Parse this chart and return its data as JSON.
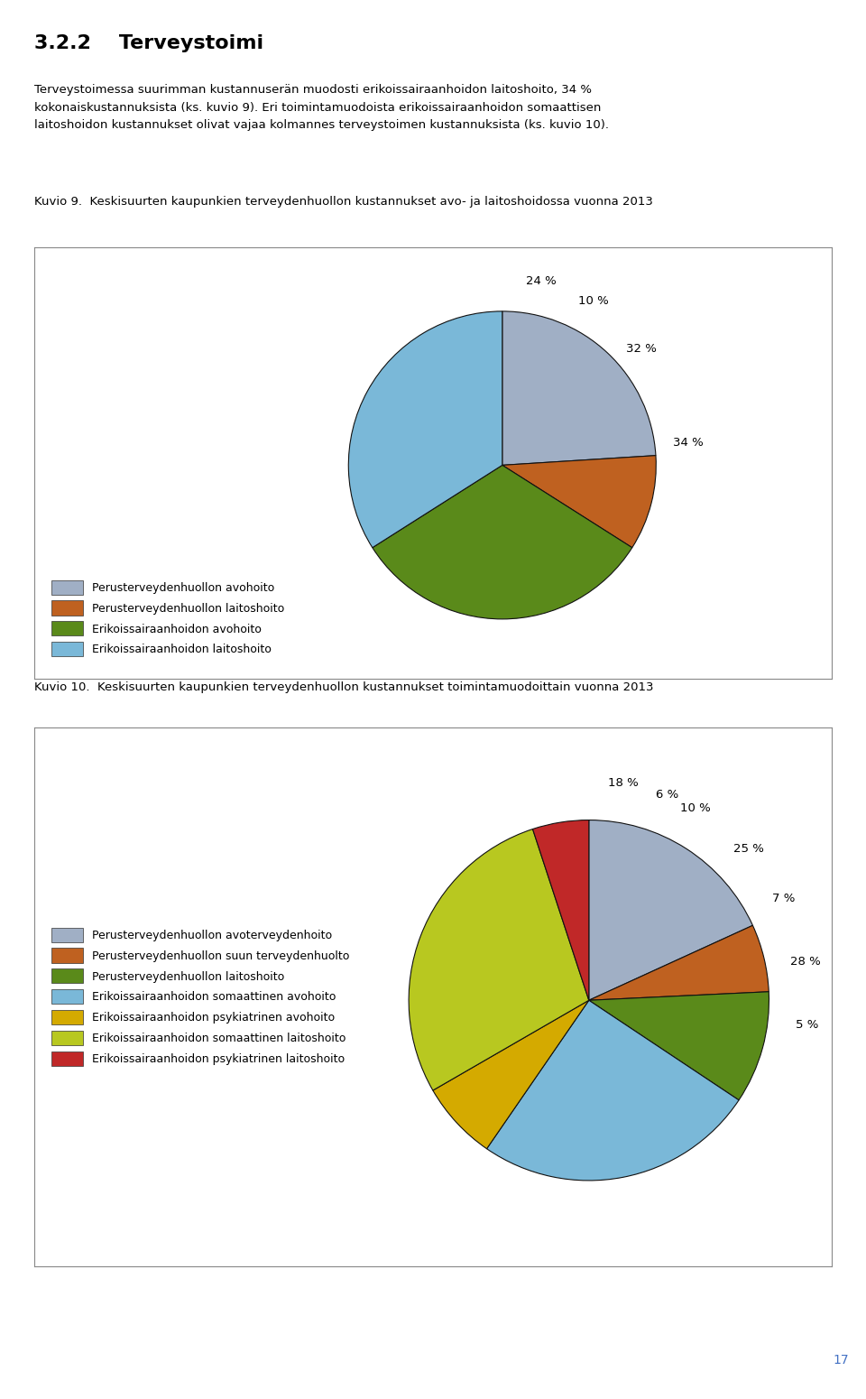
{
  "title_text": "3.2.2    Terveystoimi",
  "body_text": "Terveystoimessa suurimman kustannuserän muodosti erikoissairaanhoidon laitoshoito, 34 %\nkokonaiskustannuksista (ks. kuvio 9). Eri toimintamuodoista erikoissairaanhoidon somaattisen\nlaitoshoidon kustannukset olivat vajaa kolmannes terveystoimen kustannuksista (ks. kuvio 10).",
  "kuvio9_title": "Kuvio 9.  Keskisuurten kaupunkien terveydenhuollon kustannukset avo- ja laitoshoidossa vuonna 2013",
  "kuvio10_title": "Kuvio 10.  Keskisuurten kaupunkien terveydenhuollon kustannukset toimintamuodoittain vuonna 2013",
  "page_number": "17",
  "chart1_values": [
    24,
    10,
    32,
    34
  ],
  "chart1_labels": [
    "24 %",
    "10 %",
    "32 %",
    "34 %"
  ],
  "chart1_label_r": [
    1.22,
    1.22,
    1.18,
    1.22
  ],
  "chart1_colors": [
    "#a0afc5",
    "#bf6120",
    "#5a8a1a",
    "#7ab8d8"
  ],
  "chart1_legend_labels": [
    "Perusterveydenhuollon avohoito",
    "Perusterveydenhuollon laitoshoito",
    "Erikoissairaanhoidon avohoito",
    "Erikoissairaanhoidon laitoshoito"
  ],
  "chart1_startangle": 90,
  "chart2_values": [
    18,
    6,
    10,
    25,
    7,
    28,
    5
  ],
  "chart2_labels": [
    "18 %",
    "6 %",
    "10 %",
    "25 %",
    "7 %",
    "28 %",
    "5 %"
  ],
  "chart2_label_r": [
    1.22,
    1.22,
    1.22,
    1.22,
    1.22,
    1.22,
    1.22
  ],
  "chart2_colors": [
    "#a0afc5",
    "#bf6120",
    "#5a8a1a",
    "#7ab8d8",
    "#d4aa00",
    "#b8c820",
    "#c02828"
  ],
  "chart2_legend_labels": [
    "Perusterveydenhuollon avoterveydenhoito",
    "Perusterveydenhuollon suun terveydenhuolto",
    "Perusterveydenhuollon laitoshoito",
    "Erikoissairaanhoidon somaattinen avohoito",
    "Erikoissairaanhoidon psykiatrinen avohoito",
    "Erikoissairaanhoidon somaattinen laitoshoito",
    "Erikoissairaanhoidon psykiatrinen laitoshoito"
  ],
  "chart2_startangle": 90,
  "bg_color": "#ffffff",
  "box_edge_color": "#888888",
  "text_color": "#000000",
  "page_num_color": "#4472c4"
}
